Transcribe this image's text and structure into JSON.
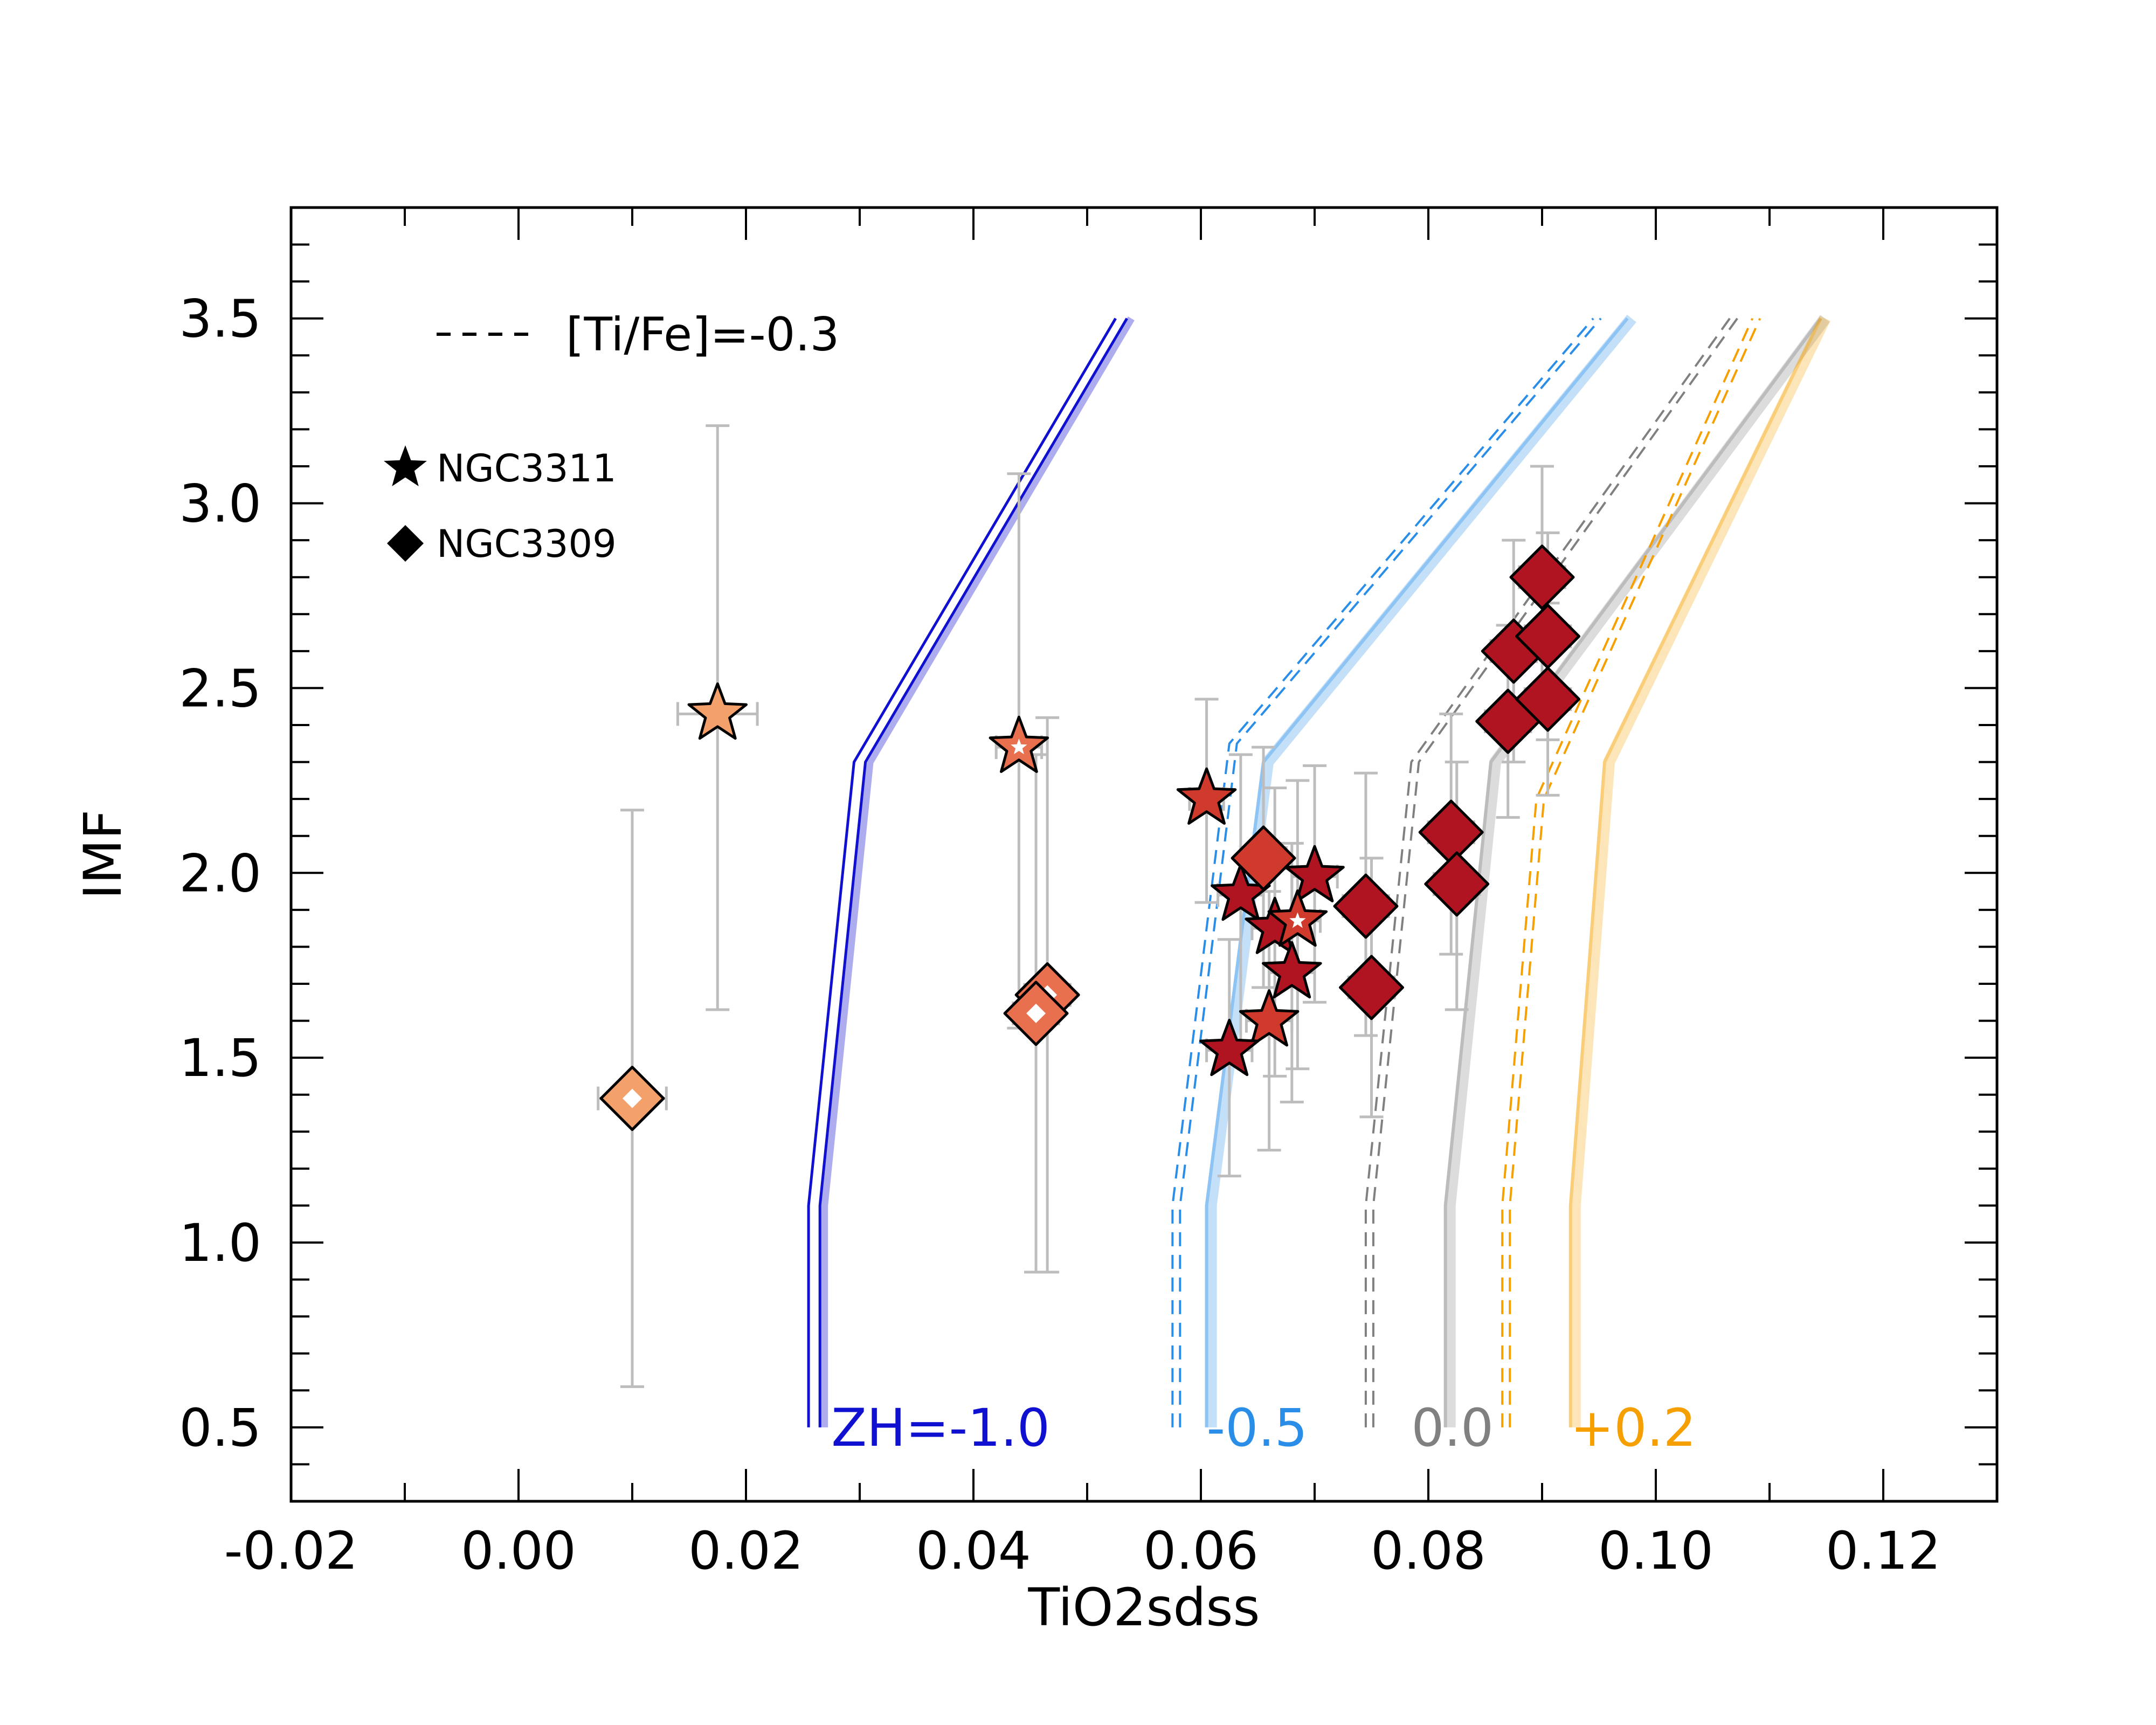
{
  "chart_data": {
    "type": "scatter",
    "xlabel": "TiO2sdss",
    "ylabel": "IMF",
    "xlim": [
      -0.02,
      0.13
    ],
    "ylim": [
      0.3,
      3.8
    ],
    "x_ticks": [
      "-0.02",
      "0.00",
      "0.02",
      "0.04",
      "0.06",
      "0.08",
      "0.10",
      "0.12"
    ],
    "y_ticks": [
      "0.5",
      "1.0",
      "1.5",
      "2.0",
      "2.5",
      "3.0",
      "3.5"
    ],
    "legend": {
      "dashed_label": "[Ti/Fe]=-0.3",
      "star_label": "NGC3311",
      "diamond_label": "NGC3309"
    },
    "colors": {
      "dark_red": "#b01420",
      "red": "#cf3a2c",
      "orange_red": "#e8704f",
      "light_orange": "#f4a06b",
      "error_bar": "#bdbdbd",
      "zh_m10": "#1010d0",
      "zh_m05": "#2a8ee8",
      "zh_00": "#808080",
      "zh_p02": "#f5a000"
    },
    "model_lines": [
      {
        "name": "ZH=-1.0",
        "label": "ZH=-1.0",
        "color": "#1010d0",
        "solid": [
          [
            0.0265,
            0.5
          ],
          [
            0.0265,
            1.1
          ],
          [
            0.0305,
            2.3
          ],
          [
            0.0535,
            3.5
          ]
        ],
        "dashed": [
          [
            0.0255,
            0.5
          ],
          [
            0.0255,
            1.1
          ],
          [
            0.0295,
            2.3
          ],
          [
            0.0525,
            3.5
          ]
        ]
      },
      {
        "name": "ZH=-0.5",
        "label": "-0.5",
        "color": "#2a8ee8",
        "solid": [
          [
            0.0605,
            0.5
          ],
          [
            0.0605,
            1.1
          ],
          [
            0.0655,
            2.3
          ],
          [
            0.0975,
            3.5
          ]
        ],
        "dashed": [
          [
            0.0575,
            0.5
          ],
          [
            0.0575,
            1.1
          ],
          [
            0.0625,
            2.35
          ],
          [
            0.0945,
            3.5
          ]
        ]
      },
      {
        "name": "ZH=0.0",
        "label": "0.0",
        "color": "#808080",
        "solid": [
          [
            0.0815,
            0.5
          ],
          [
            0.0815,
            1.1
          ],
          [
            0.0855,
            2.3
          ],
          [
            0.1145,
            3.5
          ]
        ],
        "dashed": [
          [
            0.0745,
            0.5
          ],
          [
            0.0745,
            1.1
          ],
          [
            0.0785,
            2.3
          ],
          [
            0.1065,
            3.5
          ]
        ]
      },
      {
        "name": "ZH=+0.2",
        "label": "+0.2",
        "color": "#f5a000",
        "solid": [
          [
            0.0925,
            0.5
          ],
          [
            0.0925,
            1.1
          ],
          [
            0.0955,
            2.3
          ],
          [
            0.1145,
            3.5
          ]
        ],
        "dashed": [
          [
            0.0865,
            0.5
          ],
          [
            0.0865,
            1.1
          ],
          [
            0.0895,
            2.2
          ],
          [
            0.1085,
            3.5
          ]
        ]
      }
    ],
    "points": [
      {
        "series": "NGC3311",
        "marker": "star",
        "x": 0.0175,
        "y": 2.43,
        "xerr": 0.0035,
        "yerr_low": 0.8,
        "yerr_high": 0.78,
        "color": "#f4a06b",
        "hollow": false
      },
      {
        "series": "NGC3311",
        "marker": "star",
        "x": 0.044,
        "y": 2.34,
        "xerr": 0.002,
        "yerr_low": 0.76,
        "yerr_high": 0.74,
        "color": "#e8704f",
        "hollow": true
      },
      {
        "series": "NGC3311",
        "marker": "star",
        "x": 0.0605,
        "y": 2.2,
        "xerr": 0.0015,
        "yerr_low": 0.28,
        "yerr_high": 0.27,
        "color": "#cf3a2c",
        "hollow": false
      },
      {
        "series": "NGC3311",
        "marker": "star",
        "x": 0.0635,
        "y": 1.94,
        "xerr": 0.002,
        "yerr_low": 0.4,
        "yerr_high": 0.38,
        "color": "#b01420",
        "hollow": false
      },
      {
        "series": "NGC3311",
        "marker": "star",
        "x": 0.07,
        "y": 1.99,
        "xerr": 0.002,
        "yerr_low": 0.34,
        "yerr_high": 0.3,
        "color": "#b01420",
        "hollow": false
      },
      {
        "series": "NGC3311",
        "marker": "star",
        "x": 0.0665,
        "y": 1.85,
        "xerr": 0.002,
        "yerr_low": 0.4,
        "yerr_high": 0.38,
        "color": "#b01420",
        "hollow": false
      },
      {
        "series": "NGC3311",
        "marker": "star",
        "x": 0.0685,
        "y": 1.87,
        "xerr": 0.002,
        "yerr_low": 0.4,
        "yerr_high": 0.38,
        "color": "#cf3a2c",
        "hollow": true
      },
      {
        "series": "NGC3311",
        "marker": "star",
        "x": 0.068,
        "y": 1.73,
        "xerr": 0.002,
        "yerr_low": 0.35,
        "yerr_high": 0.35,
        "color": "#b01420",
        "hollow": false
      },
      {
        "series": "NGC3311",
        "marker": "star",
        "x": 0.066,
        "y": 1.6,
        "xerr": 0.002,
        "yerr_low": 0.35,
        "yerr_high": 0.35,
        "color": "#cf3a2c",
        "hollow": false
      },
      {
        "series": "NGC3311",
        "marker": "star",
        "x": 0.0625,
        "y": 1.52,
        "xerr": 0.002,
        "yerr_low": 0.34,
        "yerr_high": 0.3,
        "color": "#b01420",
        "hollow": false
      },
      {
        "series": "NGC3309",
        "marker": "diamond",
        "x": 0.01,
        "y": 1.39,
        "xerr": 0.003,
        "yerr_low": 0.78,
        "yerr_high": 0.78,
        "color": "#f4a06b",
        "hollow": true
      },
      {
        "series": "NGC3309",
        "marker": "diamond",
        "x": 0.0465,
        "y": 1.67,
        "xerr": 0.002,
        "yerr_low": 0.75,
        "yerr_high": 0.75,
        "color": "#e8704f",
        "hollow": true
      },
      {
        "series": "NGC3309",
        "marker": "diamond",
        "x": 0.0455,
        "y": 1.62,
        "xerr": 0.002,
        "yerr_low": 0.7,
        "yerr_high": 0.7,
        "color": "#e8704f",
        "hollow": true
      },
      {
        "series": "NGC3309",
        "marker": "diamond",
        "x": 0.0655,
        "y": 2.04,
        "xerr": 0.002,
        "yerr_low": 0.35,
        "yerr_high": 0.3,
        "color": "#cf3a2c",
        "hollow": false
      },
      {
        "series": "NGC3309",
        "marker": "diamond",
        "x": 0.0745,
        "y": 1.91,
        "xerr": 0.002,
        "yerr_low": 0.35,
        "yerr_high": 0.36,
        "color": "#b01420",
        "hollow": false
      },
      {
        "series": "NGC3309",
        "marker": "diamond",
        "x": 0.075,
        "y": 1.69,
        "xerr": 0.002,
        "yerr_low": 0.35,
        "yerr_high": 0.35,
        "color": "#b01420",
        "hollow": false
      },
      {
        "series": "NGC3309",
        "marker": "diamond",
        "x": 0.082,
        "y": 2.11,
        "xerr": 0.002,
        "yerr_low": 0.33,
        "yerr_high": 0.32,
        "color": "#b01420",
        "hollow": false
      },
      {
        "series": "NGC3309",
        "marker": "diamond",
        "x": 0.0825,
        "y": 1.97,
        "xerr": 0.002,
        "yerr_low": 0.34,
        "yerr_high": 0.33,
        "color": "#b01420",
        "hollow": false
      },
      {
        "series": "NGC3309",
        "marker": "diamond",
        "x": 0.09,
        "y": 2.8,
        "xerr": 0.002,
        "yerr_low": 0.3,
        "yerr_high": 0.3,
        "color": "#b01420",
        "hollow": false
      },
      {
        "series": "NGC3309",
        "marker": "diamond",
        "x": 0.0875,
        "y": 2.6,
        "xerr": 0.002,
        "yerr_low": 0.3,
        "yerr_high": 0.3,
        "color": "#b01420",
        "hollow": false
      },
      {
        "series": "NGC3309",
        "marker": "diamond",
        "x": 0.0905,
        "y": 2.64,
        "xerr": 0.002,
        "yerr_low": 0.28,
        "yerr_high": 0.28,
        "color": "#b01420",
        "hollow": false
      },
      {
        "series": "NGC3309",
        "marker": "diamond",
        "x": 0.087,
        "y": 2.41,
        "xerr": 0.002,
        "yerr_low": 0.26,
        "yerr_high": 0.26,
        "color": "#b01420",
        "hollow": false
      },
      {
        "series": "NGC3309",
        "marker": "diamond",
        "x": 0.0905,
        "y": 2.47,
        "xerr": 0.002,
        "yerr_low": 0.26,
        "yerr_high": 0.26,
        "color": "#b01420",
        "hollow": false
      }
    ]
  }
}
